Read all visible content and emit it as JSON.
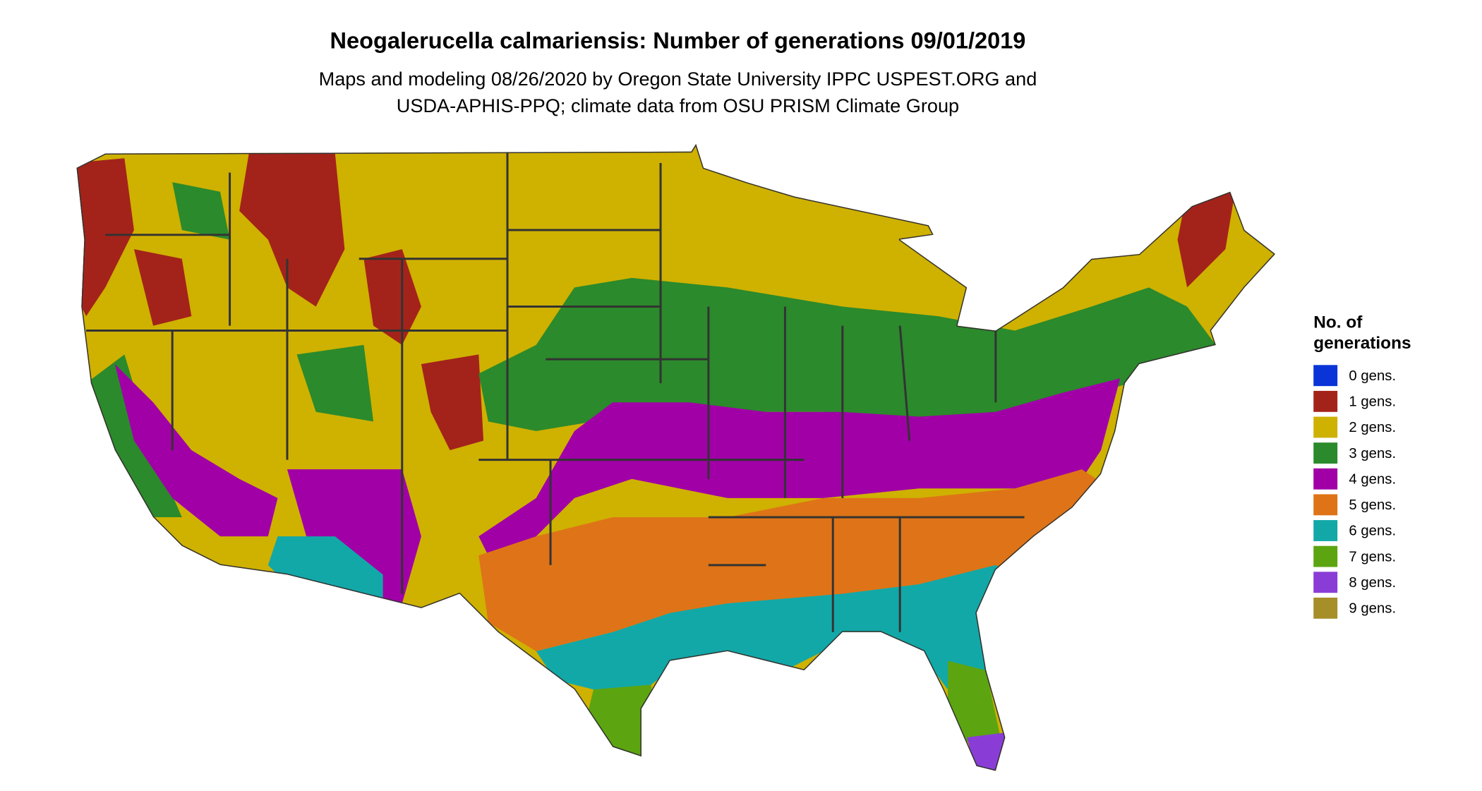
{
  "title": "Neogalerucella calmariensis: Number of generations 09/01/2019",
  "subtitle": [
    "Maps and modeling 08/26/2020 by Oregon State University IPPC USPEST.ORG and",
    "USDA-APHIS-PPQ; climate data from OSU PRISM Climate Group"
  ],
  "legend": {
    "title": [
      "No. of",
      "generations"
    ],
    "items": [
      {
        "label": "0 gens.",
        "color": "#0a34d8"
      },
      {
        "label": "1 gens.",
        "color": "#a3231b"
      },
      {
        "label": "2 gens.",
        "color": "#cfb100"
      },
      {
        "label": "3 gens.",
        "color": "#2b8a2b"
      },
      {
        "label": "4 gens.",
        "color": "#a000a6"
      },
      {
        "label": "5 gens.",
        "color": "#de7417"
      },
      {
        "label": "6 gens.",
        "color": "#12a8a8"
      },
      {
        "label": "7 gens.",
        "color": "#5ca510"
      },
      {
        "label": "8 gens.",
        "color": "#8a3dd6"
      },
      {
        "label": "9 gens.",
        "color": "#a68e29"
      }
    ]
  }
}
